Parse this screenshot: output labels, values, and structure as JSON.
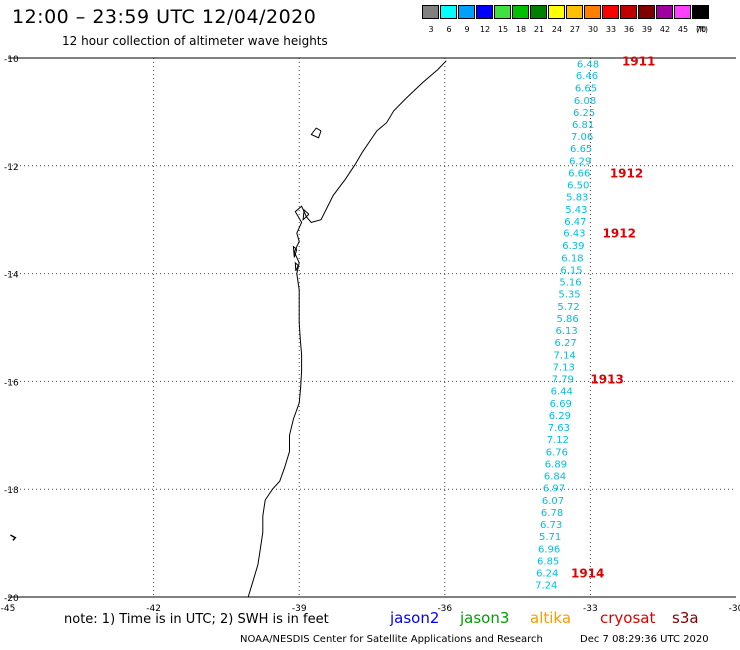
{
  "header": {
    "title": "12:00 – 23:59 UTC 12/04/2020",
    "subtitle": "12 hour collection of altimeter wave heights"
  },
  "legend": {
    "unit": "(ft)",
    "bins": [
      {
        "label": "3",
        "color": "#808080"
      },
      {
        "label": "6",
        "color": "#00ffff"
      },
      {
        "label": "9",
        "color": "#00a0ff"
      },
      {
        "label": "12",
        "color": "#0000ff"
      },
      {
        "label": "15",
        "color": "#40e040"
      },
      {
        "label": "18",
        "color": "#00c000"
      },
      {
        "label": "21",
        "color": "#008000"
      },
      {
        "label": "24",
        "color": "#ffff00"
      },
      {
        "label": "27",
        "color": "#ffc000"
      },
      {
        "label": "30",
        "color": "#ff8000"
      },
      {
        "label": "33",
        "color": "#ff0000"
      },
      {
        "label": "36",
        "color": "#c00000"
      },
      {
        "label": "39",
        "color": "#800000"
      },
      {
        "label": "42",
        "color": "#a000a0"
      },
      {
        "label": "45",
        "color": "#ff40ff"
      },
      {
        "label": "70",
        "color": "#000000"
      }
    ]
  },
  "chart_data": {
    "type": "scatter",
    "xlim": [
      -45,
      -30
    ],
    "ylim": [
      -20,
      -10
    ],
    "x_ticks": [
      "-45",
      "-42",
      "-39",
      "-36",
      "-33",
      "-30"
    ],
    "y_ticks": [
      "-10",
      "-12",
      "-14",
      "-16",
      "-18",
      "-20"
    ],
    "grid": true,
    "observation_color": "#00c0e0",
    "time_color": "#e00000",
    "observations": [
      {
        "lon": -33.05,
        "lat": -10.1,
        "swh": "6.48"
      },
      {
        "lon": -33.07,
        "lat": -10.32,
        "swh": "6.46"
      },
      {
        "lon": -33.09,
        "lat": -10.55,
        "swh": "6.65"
      },
      {
        "lon": -33.11,
        "lat": -10.78,
        "swh": "6.08"
      },
      {
        "lon": -33.13,
        "lat": -11.0,
        "swh": "6.25"
      },
      {
        "lon": -33.15,
        "lat": -11.22,
        "swh": "6.81"
      },
      {
        "lon": -33.17,
        "lat": -11.45,
        "swh": "7.06"
      },
      {
        "lon": -33.19,
        "lat": -11.67,
        "swh": "6.65"
      },
      {
        "lon": -33.21,
        "lat": -11.9,
        "swh": "6.29"
      },
      {
        "lon": -33.23,
        "lat": -12.12,
        "swh": "6.66"
      },
      {
        "lon": -33.25,
        "lat": -12.35,
        "swh": "6.50"
      },
      {
        "lon": -33.27,
        "lat": -12.57,
        "swh": "5.83"
      },
      {
        "lon": -33.29,
        "lat": -12.8,
        "swh": "5.43"
      },
      {
        "lon": -33.31,
        "lat": -13.02,
        "swh": "6.47"
      },
      {
        "lon": -33.33,
        "lat": -13.24,
        "swh": "6.43"
      },
      {
        "lon": -33.35,
        "lat": -13.47,
        "swh": "6.39"
      },
      {
        "lon": -33.37,
        "lat": -13.7,
        "swh": "6.18"
      },
      {
        "lon": -33.39,
        "lat": -13.92,
        "swh": "6.15"
      },
      {
        "lon": -33.41,
        "lat": -14.15,
        "swh": "5.16"
      },
      {
        "lon": -33.43,
        "lat": -14.37,
        "swh": "5.35"
      },
      {
        "lon": -33.45,
        "lat": -14.6,
        "swh": "5.72"
      },
      {
        "lon": -33.47,
        "lat": -14.82,
        "swh": "5.86"
      },
      {
        "lon": -33.49,
        "lat": -15.05,
        "swh": "6.13"
      },
      {
        "lon": -33.51,
        "lat": -15.27,
        "swh": "6.27"
      },
      {
        "lon": -33.53,
        "lat": -15.5,
        "swh": "7.14"
      },
      {
        "lon": -33.55,
        "lat": -15.72,
        "swh": "7.13"
      },
      {
        "lon": -33.57,
        "lat": -15.95,
        "swh": "7.79"
      },
      {
        "lon": -33.59,
        "lat": -16.17,
        "swh": "6.44"
      },
      {
        "lon": -33.61,
        "lat": -16.4,
        "swh": "6.69"
      },
      {
        "lon": -33.63,
        "lat": -16.62,
        "swh": "6.29"
      },
      {
        "lon": -33.65,
        "lat": -16.85,
        "swh": "7.63"
      },
      {
        "lon": -33.67,
        "lat": -17.07,
        "swh": "7.12"
      },
      {
        "lon": -33.69,
        "lat": -17.3,
        "swh": "6.76"
      },
      {
        "lon": -33.71,
        "lat": -17.52,
        "swh": "6.89"
      },
      {
        "lon": -33.73,
        "lat": -17.75,
        "swh": "6.84"
      },
      {
        "lon": -33.75,
        "lat": -17.97,
        "swh": "6.97"
      },
      {
        "lon": -33.77,
        "lat": -18.2,
        "swh": "6.07"
      },
      {
        "lon": -33.79,
        "lat": -18.42,
        "swh": "6.78"
      },
      {
        "lon": -33.81,
        "lat": -18.65,
        "swh": "6.73"
      },
      {
        "lon": -33.83,
        "lat": -18.87,
        "swh": "5.71"
      },
      {
        "lon": -33.85,
        "lat": -19.1,
        "swh": "6.96"
      },
      {
        "lon": -33.87,
        "lat": -19.32,
        "swh": "6.85"
      },
      {
        "lon": -33.89,
        "lat": -19.55,
        "swh": "6.24"
      },
      {
        "lon": -33.91,
        "lat": -19.77,
        "swh": "7.24"
      }
    ],
    "time_labels": [
      {
        "lon": -32.35,
        "lat": -10.05,
        "text": "1911"
      },
      {
        "lon": -32.6,
        "lat": -12.12,
        "text": "1912"
      },
      {
        "lon": -32.75,
        "lat": -13.24,
        "text": "1912"
      },
      {
        "lon": -33.0,
        "lat": -15.95,
        "text": "1913"
      },
      {
        "lon": -33.4,
        "lat": -19.55,
        "text": "1914"
      }
    ],
    "coastline": [
      [
        -35.97,
        -10.05
      ],
      [
        -36.15,
        -10.22
      ],
      [
        -36.45,
        -10.45
      ],
      [
        -36.8,
        -10.75
      ],
      [
        -37.05,
        -10.98
      ],
      [
        -37.2,
        -11.2
      ],
      [
        -37.4,
        -11.35
      ],
      [
        -37.55,
        -11.55
      ],
      [
        -37.7,
        -11.75
      ],
      [
        -37.85,
        -11.98
      ],
      [
        -38.05,
        -12.25
      ],
      [
        -38.3,
        -12.55
      ],
      [
        -38.45,
        -12.82
      ],
      [
        -38.55,
        -13.0
      ],
      [
        -38.75,
        -13.05
      ],
      [
        -38.85,
        -12.95
      ],
      [
        -38.95,
        -12.75
      ],
      [
        -39.08,
        -12.85
      ],
      [
        -38.95,
        -13.05
      ],
      [
        -39.05,
        -13.25
      ],
      [
        -39.0,
        -13.4
      ],
      [
        -39.1,
        -13.6
      ],
      [
        -39.0,
        -13.8
      ],
      [
        -39.05,
        -14.0
      ],
      [
        -39.0,
        -14.3
      ],
      [
        -39.0,
        -14.6
      ],
      [
        -39.0,
        -14.9
      ],
      [
        -38.98,
        -15.2
      ],
      [
        -38.95,
        -15.5
      ],
      [
        -38.95,
        -15.8
      ],
      [
        -38.97,
        -16.1
      ],
      [
        -39.0,
        -16.4
      ],
      [
        -39.12,
        -16.7
      ],
      [
        -39.2,
        -17.0
      ],
      [
        -39.2,
        -17.3
      ],
      [
        -39.3,
        -17.6
      ],
      [
        -39.4,
        -17.85
      ],
      [
        -39.55,
        -18.0
      ],
      [
        -39.7,
        -18.2
      ],
      [
        -39.75,
        -18.5
      ],
      [
        -39.75,
        -18.8
      ],
      [
        -39.8,
        -19.1
      ],
      [
        -39.85,
        -19.4
      ],
      [
        -39.95,
        -19.7
      ],
      [
        -40.05,
        -20.0
      ]
    ],
    "inlets": [
      [
        [
          -38.55,
          -11.35
        ],
        [
          -38.65,
          -11.3
        ],
        [
          -38.75,
          -11.42
        ],
        [
          -38.6,
          -11.48
        ],
        [
          -38.55,
          -11.35
        ]
      ],
      [
        [
          -38.8,
          -12.9
        ],
        [
          -38.9,
          -12.82
        ],
        [
          -38.92,
          -13.0
        ],
        [
          -38.8,
          -12.9
        ]
      ],
      [
        [
          -39.05,
          -13.55
        ],
        [
          -39.12,
          -13.5
        ],
        [
          -39.1,
          -13.7
        ],
        [
          -39.05,
          -13.55
        ]
      ],
      [
        [
          -39.02,
          -13.85
        ],
        [
          -39.08,
          -13.8
        ],
        [
          -39.07,
          -13.95
        ],
        [
          -39.02,
          -13.85
        ]
      ]
    ],
    "stray_coast": [
      [
        -44.95,
        -18.85
      ],
      [
        -44.85,
        -18.9
      ],
      [
        -44.9,
        -18.95
      ]
    ]
  },
  "footer": {
    "note": "note: 1) Time is in UTC; 2) SWH is in feet",
    "satellites": [
      {
        "label": "jason2",
        "color": "#0000ff"
      },
      {
        "label": "jason3",
        "color": "#00a000"
      },
      {
        "label": "altika",
        "color": "#ff9900"
      },
      {
        "label": "cryosat",
        "color": "#e00000"
      },
      {
        "label": "s3a",
        "color": "#800000"
      }
    ],
    "credit": "NOAA/NESDIS Center for Satellite Applications and Research",
    "timestamp": "Dec  7 08:29:36 UTC 2020"
  }
}
